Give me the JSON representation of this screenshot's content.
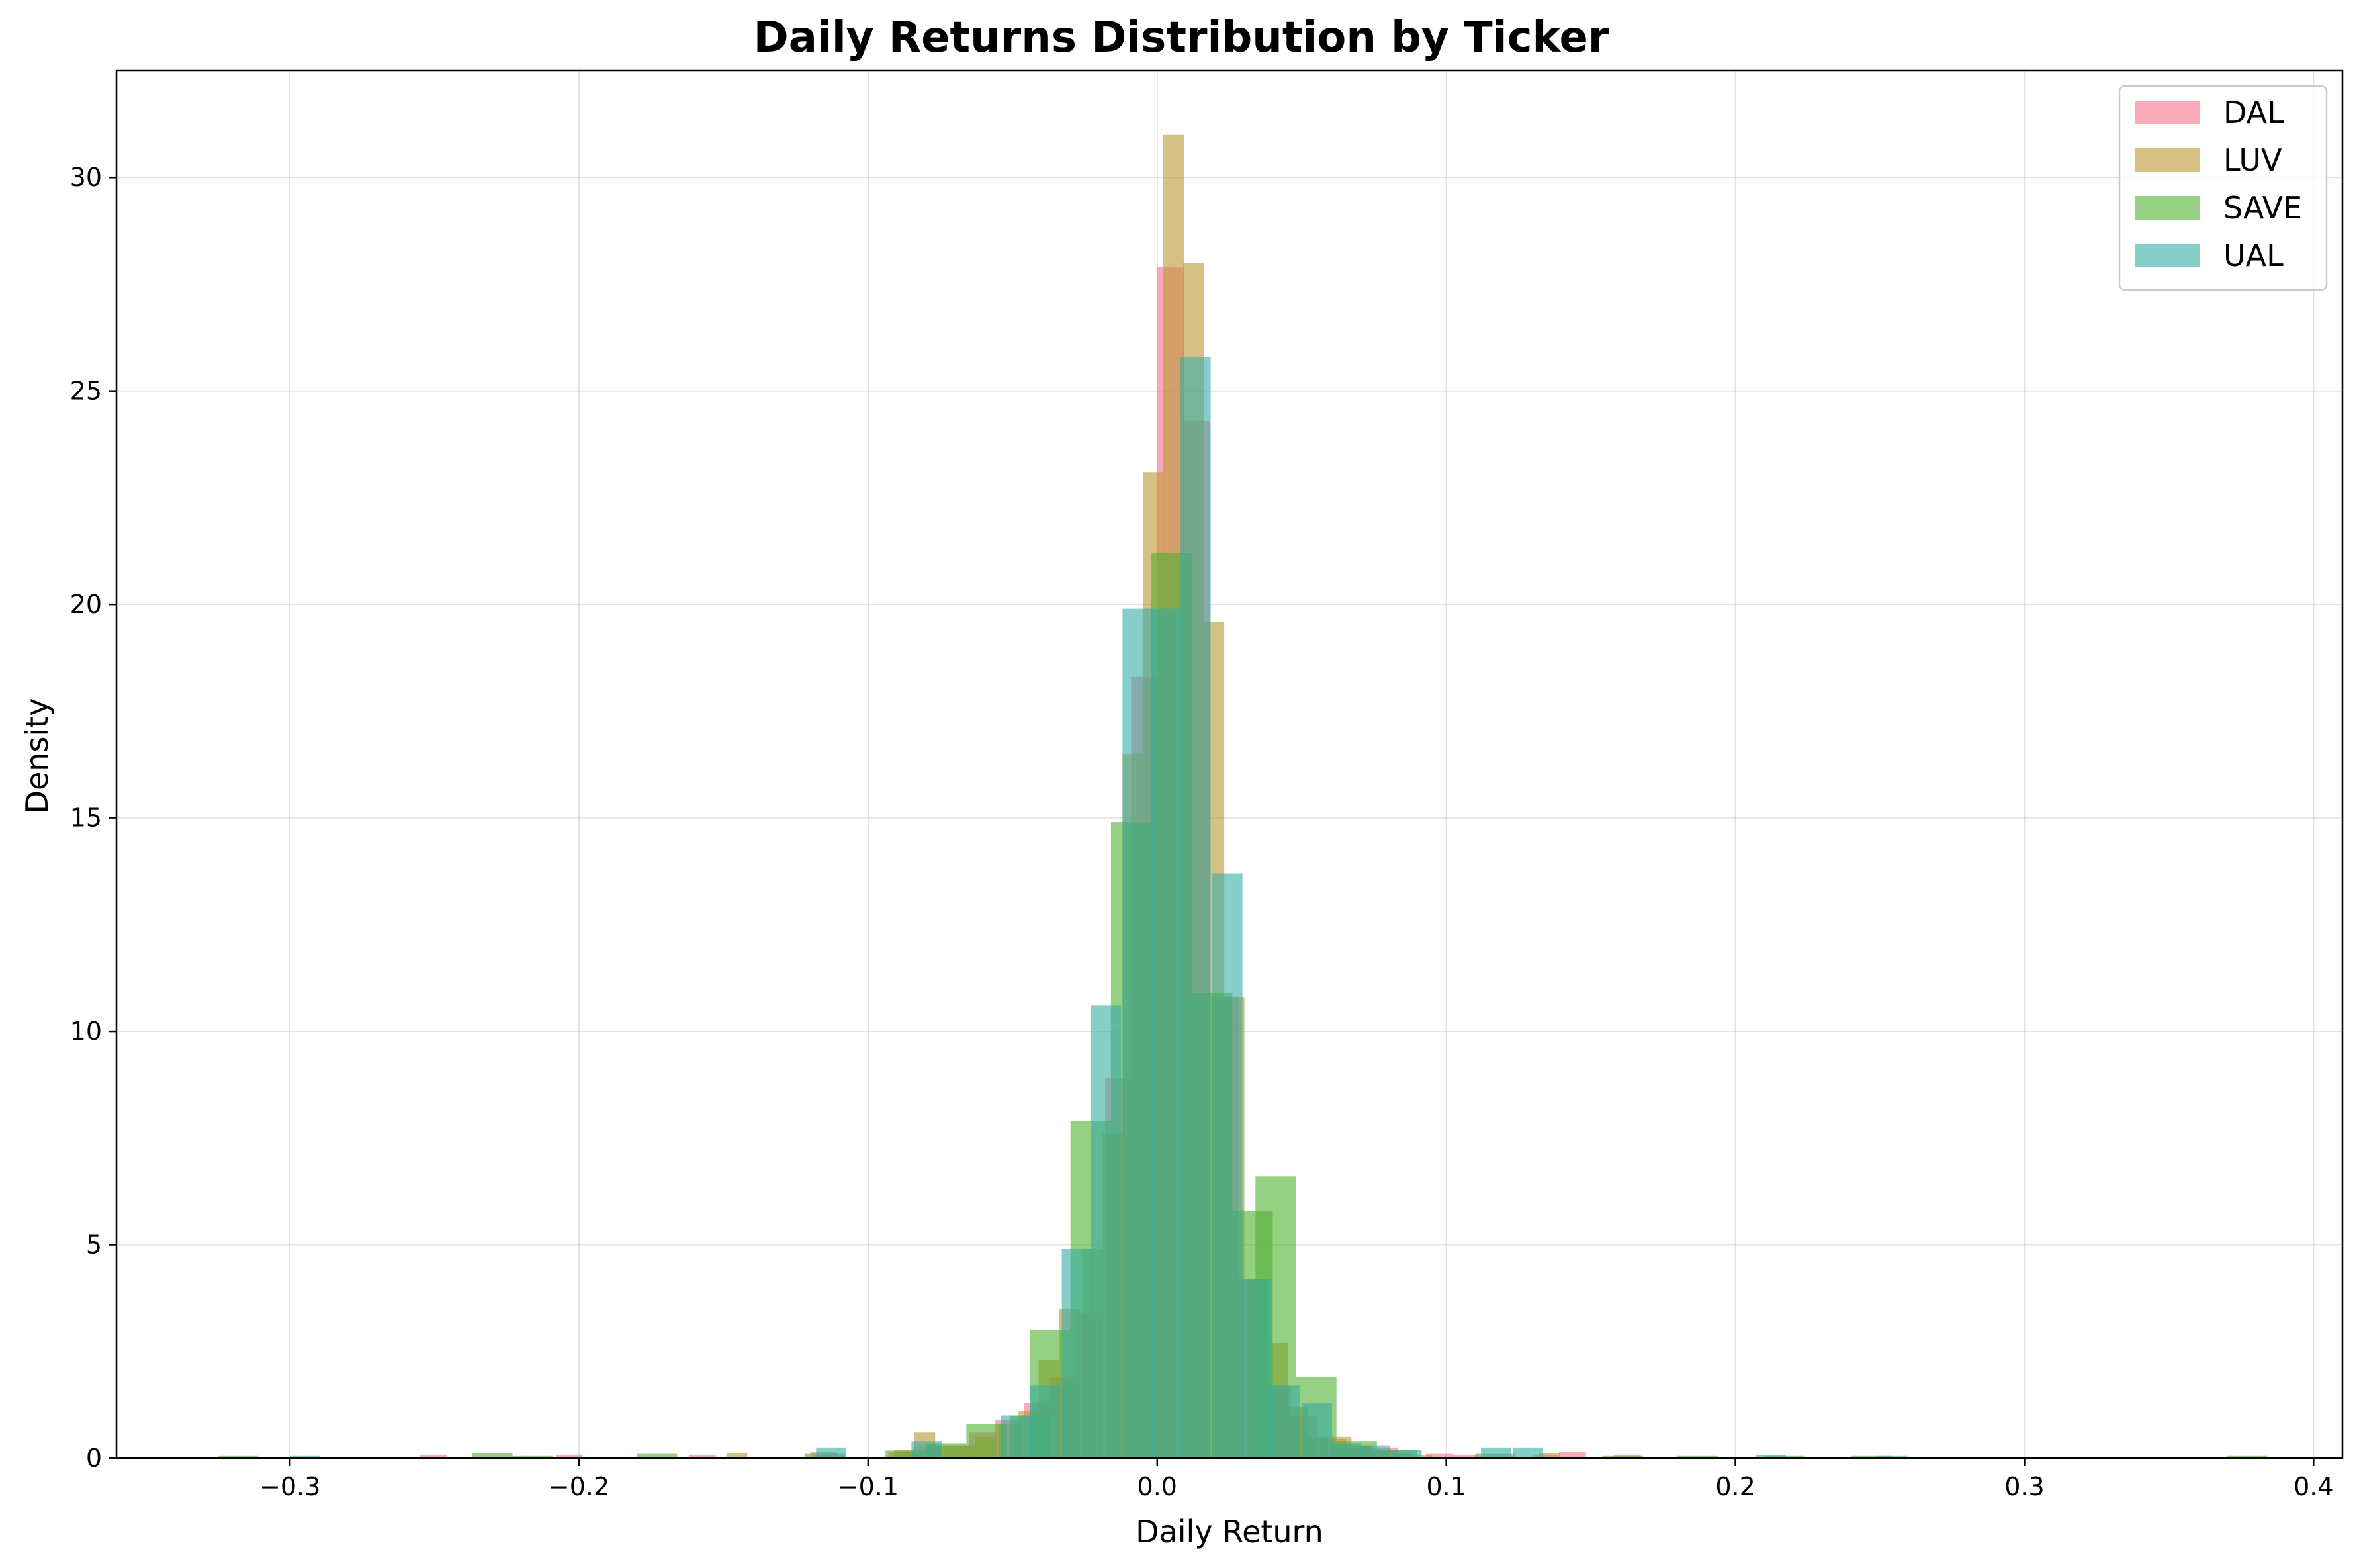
{
  "chart_data": {
    "type": "bar",
    "subtype": "overlaid-histogram",
    "title": "Daily Returns Distribution by Ticker",
    "xlabel": "Daily Return",
    "ylabel": "Density",
    "xlim": [
      -0.36,
      0.41
    ],
    "ylim": [
      0,
      32.5
    ],
    "xticks": [
      -0.3,
      -0.2,
      -0.1,
      0.0,
      0.1,
      0.2,
      0.3,
      0.4
    ],
    "xtick_labels": [
      "−0.3",
      "−0.2",
      "−0.1",
      "0.0",
      "0.1",
      "0.2",
      "0.3",
      "0.4"
    ],
    "yticks": [
      0,
      5,
      10,
      15,
      20,
      25,
      30
    ],
    "ytick_labels": [
      "0",
      "5",
      "10",
      "15",
      "20",
      "25",
      "30"
    ],
    "grid": true,
    "legend_position": "top-right",
    "series": [
      {
        "name": "DAL",
        "color": "#f77189",
        "bin_width": 0.0093,
        "bins": [
          [
            -0.255,
            0.08
          ],
          [
            -0.208,
            0.08
          ],
          [
            -0.162,
            0.08
          ],
          [
            -0.12,
            0.15
          ],
          [
            -0.093,
            0.15
          ],
          [
            -0.084,
            0.3
          ],
          [
            -0.074,
            0.3
          ],
          [
            -0.065,
            0.6
          ],
          [
            -0.056,
            0.9
          ],
          [
            -0.046,
            1.3
          ],
          [
            -0.037,
            1.9
          ],
          [
            -0.028,
            3.4
          ],
          [
            -0.018,
            8.9
          ],
          [
            -0.009,
            18.3
          ],
          [
            0.0,
            27.9
          ],
          [
            0.009,
            24.3
          ],
          [
            0.019,
            10.8
          ],
          [
            0.028,
            4.2
          ],
          [
            0.037,
            1.7
          ],
          [
            0.046,
            1.0
          ],
          [
            0.056,
            0.45
          ],
          [
            0.065,
            0.3
          ],
          [
            0.074,
            0.25
          ],
          [
            0.093,
            0.1
          ],
          [
            0.102,
            0.08
          ],
          [
            0.13,
            0.08
          ],
          [
            0.139,
            0.15
          ],
          [
            0.158,
            0.08
          ]
        ]
      },
      {
        "name": "LUV",
        "color": "#bb9832",
        "bin_width": 0.0072,
        "bins": [
          [
            -0.149,
            0.12
          ],
          [
            -0.091,
            0.2
          ],
          [
            -0.084,
            0.6
          ],
          [
            -0.077,
            0.3
          ],
          [
            -0.07,
            0.3
          ],
          [
            -0.063,
            0.5
          ],
          [
            -0.055,
            0.8
          ],
          [
            -0.048,
            1.1
          ],
          [
            -0.041,
            2.3
          ],
          [
            -0.034,
            3.5
          ],
          [
            -0.026,
            4.9
          ],
          [
            -0.019,
            7.6
          ],
          [
            -0.012,
            16.5
          ],
          [
            -0.005,
            23.1
          ],
          [
            0.002,
            31.0
          ],
          [
            0.009,
            28.0
          ],
          [
            0.016,
            19.6
          ],
          [
            0.023,
            10.8
          ],
          [
            0.031,
            4.2
          ],
          [
            0.038,
            2.7
          ],
          [
            0.045,
            1.2
          ],
          [
            0.052,
            0.5
          ],
          [
            0.06,
            0.5
          ],
          [
            0.067,
            0.3
          ],
          [
            0.074,
            0.2
          ],
          [
            0.081,
            0.12
          ],
          [
            0.088,
            0.08
          ],
          [
            0.132,
            0.12
          ]
        ]
      },
      {
        "name": "SAVE",
        "color": "#50b131",
        "bin_width": 0.014,
        "bins": [
          [
            -0.325,
            0.05
          ],
          [
            -0.237,
            0.12
          ],
          [
            -0.223,
            0.05
          ],
          [
            -0.18,
            0.1
          ],
          [
            -0.122,
            0.1
          ],
          [
            -0.094,
            0.18
          ],
          [
            -0.08,
            0.35
          ],
          [
            -0.066,
            0.8
          ],
          [
            -0.051,
            1.0
          ],
          [
            -0.044,
            3.0
          ],
          [
            -0.03,
            7.9
          ],
          [
            -0.016,
            14.9
          ],
          [
            -0.002,
            21.2
          ],
          [
            0.012,
            10.9
          ],
          [
            0.026,
            5.8
          ],
          [
            0.034,
            6.6
          ],
          [
            0.048,
            1.9
          ],
          [
            0.062,
            0.4
          ],
          [
            0.076,
            0.2
          ],
          [
            0.11,
            0.1
          ],
          [
            0.154,
            0.05
          ],
          [
            0.18,
            0.05
          ],
          [
            0.21,
            0.05
          ],
          [
            0.24,
            0.05
          ],
          [
            0.37,
            0.05
          ]
        ]
      },
      {
        "name": "UAL",
        "color": "#36ada4",
        "bin_width": 0.0105,
        "bins": [
          [
            -0.3,
            0.05
          ],
          [
            -0.118,
            0.25
          ],
          [
            -0.085,
            0.4
          ],
          [
            -0.054,
            1.0
          ],
          [
            -0.044,
            1.7
          ],
          [
            -0.033,
            4.9
          ],
          [
            -0.023,
            10.6
          ],
          [
            -0.012,
            19.9
          ],
          [
            -0.002,
            19.9
          ],
          [
            0.008,
            25.8
          ],
          [
            0.019,
            13.7
          ],
          [
            0.029,
            4.2
          ],
          [
            0.039,
            1.7
          ],
          [
            0.05,
            1.3
          ],
          [
            0.06,
            0.35
          ],
          [
            0.07,
            0.3
          ],
          [
            0.081,
            0.2
          ],
          [
            0.112,
            0.25
          ],
          [
            0.123,
            0.25
          ],
          [
            0.207,
            0.08
          ],
          [
            0.249,
            0.05
          ]
        ]
      }
    ]
  }
}
